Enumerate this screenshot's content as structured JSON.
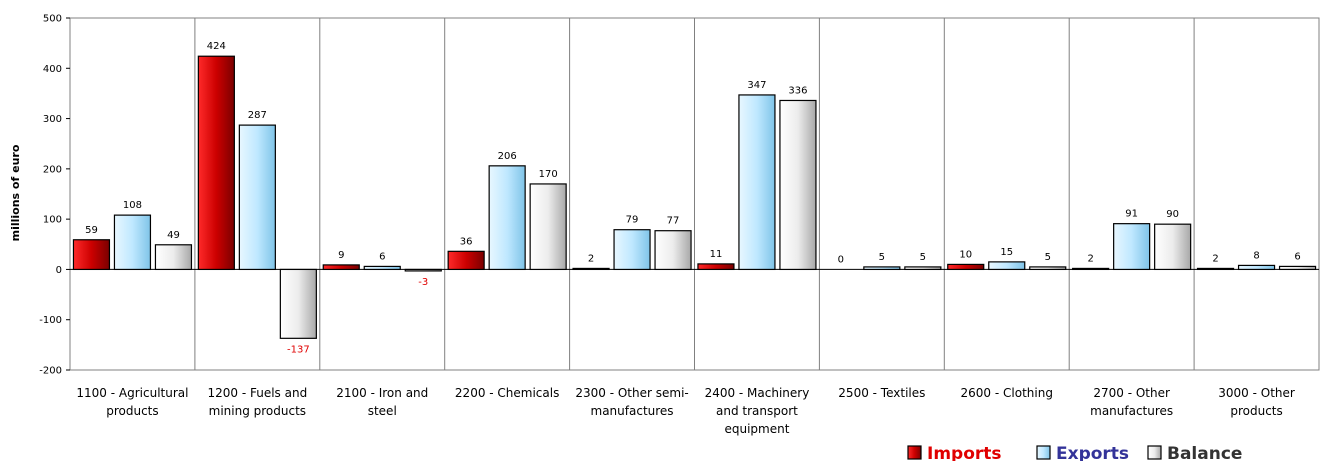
{
  "chart_data": {
    "type": "bar",
    "ylabel": "millions of euro",
    "ylim": [
      -200,
      500
    ],
    "yticks": [
      -200,
      -100,
      0,
      100,
      200,
      300,
      400,
      500
    ],
    "grid": "vertical category separators",
    "legend_position": "bottom-right",
    "categories": [
      [
        "1100 - Agricultural",
        "products"
      ],
      [
        "1200 - Fuels and",
        "mining products"
      ],
      [
        "2100 - Iron and",
        "steel"
      ],
      [
        "2200 - Chemicals"
      ],
      [
        "2300 - Other semi-",
        "manufactures"
      ],
      [
        "2400 - Machinery",
        "and transport",
        "equipment"
      ],
      [
        "2500 - Textiles"
      ],
      [
        "2600 - Clothing"
      ],
      [
        "2700 - Other",
        "manufactures"
      ],
      [
        "3000 - Other",
        "products"
      ]
    ],
    "series": [
      {
        "name": "Imports",
        "color": "#cc0000",
        "values": [
          59,
          424,
          9,
          36,
          2,
          11,
          0,
          10,
          2,
          2
        ]
      },
      {
        "name": "Exports",
        "color": "#c6ecff",
        "values": [
          108,
          287,
          6,
          206,
          79,
          347,
          5,
          15,
          91,
          8
        ]
      },
      {
        "name": "Balance",
        "color": "#e8e8e8",
        "values": [
          49,
          -137,
          -3,
          170,
          77,
          336,
          5,
          5,
          90,
          6
        ]
      }
    ],
    "legend_text_colors": [
      "#e00000",
      "#333399",
      "#333333"
    ],
    "negative_label_color": "#e00000"
  }
}
